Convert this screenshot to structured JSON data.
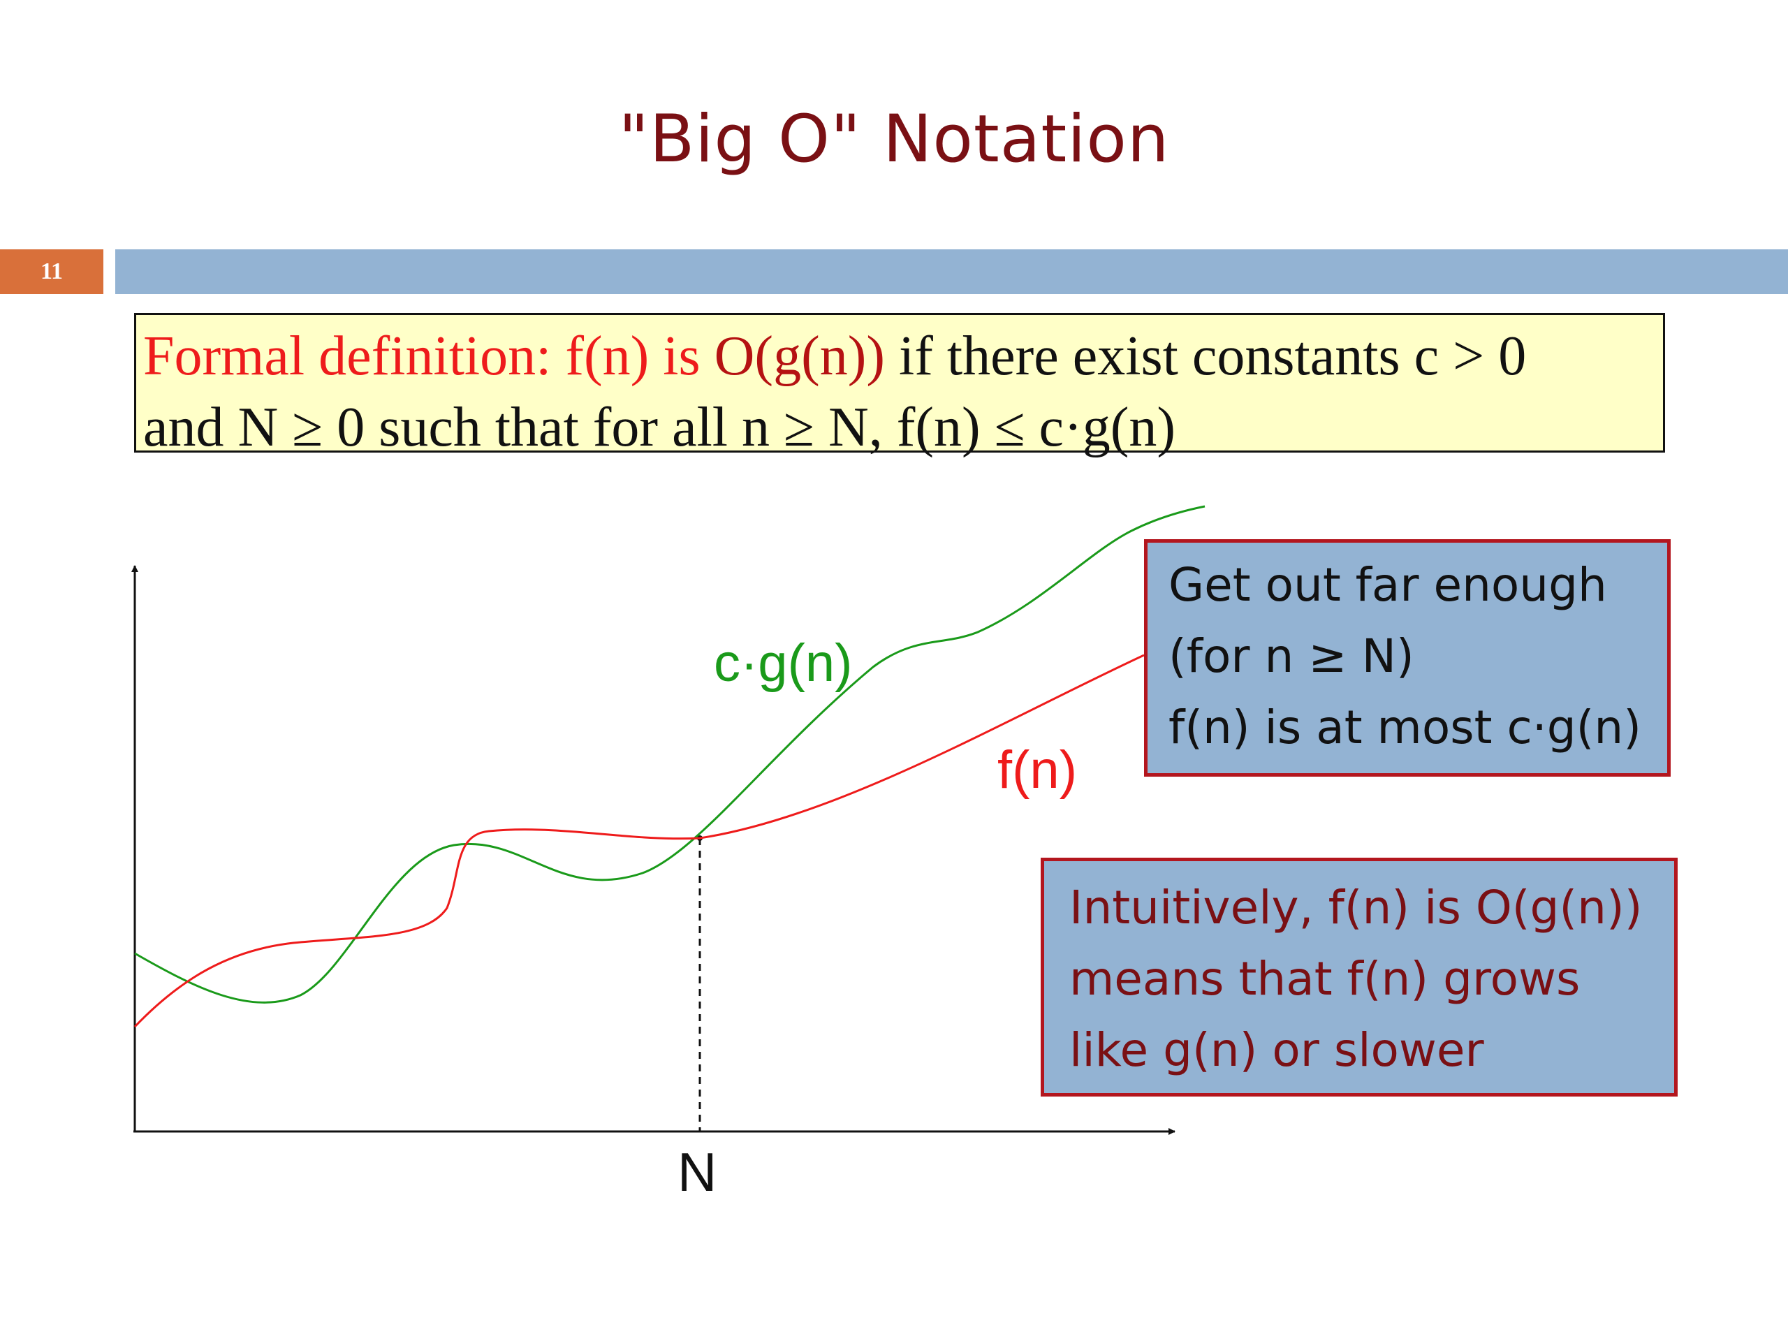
{
  "slide": {
    "title": "\"Big O\" Notation",
    "number": "11"
  },
  "definition": {
    "part_formal": "Formal definition: ",
    "part_f": "f(n) is ",
    "part_o": "O(g(n))",
    "part_rest1": " if there exist constants c > 0",
    "line2": "and N ≥ 0 such that for all n ≥ N,   f(n) ≤ c·g(n)"
  },
  "graph": {
    "curve_cg_label": "c·g(n)",
    "curve_f_label": "f(n)",
    "x_marker_label": "N",
    "colors": {
      "cg": "#1a9a1a",
      "f": "#ee1b1b",
      "axis": "#111111"
    }
  },
  "callouts": {
    "far_enough": {
      "line1": "Get out far enough",
      "line2": "(for n ≥ N)",
      "line3": "f(n) is at most c·g(n)"
    },
    "intuitively": {
      "line1": "Intuitively, f(n) is O(g(n))",
      "line2": "means that f(n) grows",
      "line3": "like g(n) or slower"
    }
  }
}
